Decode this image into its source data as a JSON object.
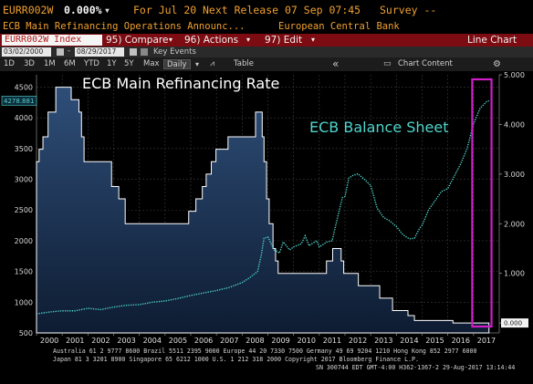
{
  "header": {
    "ticker": "EURR002W",
    "value": "0.000%",
    "for_date": "For Jul 20",
    "next_release": "Next Release 07 Sep 07:45",
    "survey": "Survey --",
    "title": "ECB Main Refinancing Operations Announc...",
    "source": "European Central Bank"
  },
  "toolbar": {
    "security": "EURR002W Index",
    "compare": "95) Compare",
    "actions": "96) Actions",
    "edit": "97) Edit",
    "view": "Line Chart"
  },
  "dates": {
    "start": "03/02/2000",
    "end": "08/29/2017",
    "key_events": "Key Events"
  },
  "periods": {
    "items": [
      "1D",
      "3D",
      "1M",
      "6M",
      "YTD",
      "1Y",
      "5Y",
      "Max"
    ],
    "frequency": "Daily",
    "table": "Table",
    "collapse_glyph": "«",
    "chart_content": "Chart Content",
    "settings_glyph": "⚙"
  },
  "colors": {
    "accent_orange": "#f0a030",
    "toolbar_red": "#7c0c12",
    "rate_line": "#ffffff",
    "balance_line": "#4fd4cc",
    "highlight_box": "#d01ec8"
  },
  "chart_data": {
    "type": "area",
    "annotations": [
      "ECB Main Refinancing Rate",
      "ECB Balance Sheet"
    ],
    "left_axis": {
      "ticks": [
        500,
        1000,
        1500,
        2000,
        2500,
        3000,
        3500,
        4000,
        4500
      ],
      "ylim": [
        500,
        4700
      ],
      "last_value_label": "4278.881"
    },
    "right_axis": {
      "ticks": [
        "0.000",
        "1.000",
        "2.000",
        "3.000",
        "4.000",
        "5.000"
      ],
      "ylim": [
        -0.2,
        5.0
      ],
      "last_value_label": "0.000"
    },
    "x_categories": [
      "2000",
      "2001",
      "2002",
      "2003",
      "2004",
      "2005",
      "2006",
      "2007",
      "2008",
      "2009",
      "2010",
      "2011",
      "2012",
      "2013",
      "2014",
      "2015",
      "2016",
      "2017"
    ],
    "series": [
      {
        "name": "ECB Main Refinancing Rate",
        "axis": "right",
        "style": "filled step area",
        "points": [
          [
            2000.0,
            3.25
          ],
          [
            2000.1,
            3.5
          ],
          [
            2000.25,
            3.75
          ],
          [
            2000.45,
            4.25
          ],
          [
            2000.5,
            4.25
          ],
          [
            2000.75,
            4.75
          ],
          [
            2001.35,
            4.5
          ],
          [
            2001.65,
            4.25
          ],
          [
            2001.75,
            3.75
          ],
          [
            2001.85,
            3.25
          ],
          [
            2002.92,
            2.75
          ],
          [
            2003.2,
            2.5
          ],
          [
            2003.45,
            2.0
          ],
          [
            2005.92,
            2.25
          ],
          [
            2006.2,
            2.5
          ],
          [
            2006.45,
            2.75
          ],
          [
            2006.6,
            3.0
          ],
          [
            2006.8,
            3.25
          ],
          [
            2006.98,
            3.5
          ],
          [
            2007.45,
            3.75
          ],
          [
            2008.52,
            4.25
          ],
          [
            2008.78,
            3.75
          ],
          [
            2008.85,
            3.25
          ],
          [
            2008.95,
            2.5
          ],
          [
            2009.05,
            2.0
          ],
          [
            2009.2,
            1.5
          ],
          [
            2009.3,
            1.25
          ],
          [
            2009.4,
            1.0
          ],
          [
            2011.28,
            1.25
          ],
          [
            2011.52,
            1.5
          ],
          [
            2011.85,
            1.25
          ],
          [
            2011.95,
            1.0
          ],
          [
            2012.52,
            0.75
          ],
          [
            2013.35,
            0.5
          ],
          [
            2013.85,
            0.25
          ],
          [
            2014.45,
            0.15
          ],
          [
            2014.7,
            0.05
          ],
          [
            2016.2,
            0.0
          ],
          [
            2017.6,
            0.0
          ]
        ]
      },
      {
        "name": "ECB Balance Sheet",
        "axis": "left",
        "style": "dotted line",
        "points": [
          [
            2000.0,
            810
          ],
          [
            2000.5,
            840
          ],
          [
            2001.0,
            860
          ],
          [
            2001.5,
            860
          ],
          [
            2002.0,
            900
          ],
          [
            2002.5,
            880
          ],
          [
            2003.0,
            920
          ],
          [
            2003.5,
            950
          ],
          [
            2004.0,
            960
          ],
          [
            2004.5,
            1000
          ],
          [
            2005.0,
            1020
          ],
          [
            2005.5,
            1060
          ],
          [
            2006.0,
            1110
          ],
          [
            2006.5,
            1150
          ],
          [
            2007.0,
            1190
          ],
          [
            2007.5,
            1240
          ],
          [
            2008.0,
            1320
          ],
          [
            2008.3,
            1400
          ],
          [
            2008.6,
            1500
          ],
          [
            2008.75,
            1780
          ],
          [
            2008.85,
            2040
          ],
          [
            2009.0,
            2060
          ],
          [
            2009.25,
            1850
          ],
          [
            2009.45,
            1800
          ],
          [
            2009.6,
            1980
          ],
          [
            2009.85,
            1850
          ],
          [
            2010.0,
            1900
          ],
          [
            2010.3,
            1950
          ],
          [
            2010.45,
            2080
          ],
          [
            2010.6,
            1920
          ],
          [
            2010.9,
            2000
          ],
          [
            2011.0,
            1900
          ],
          [
            2011.3,
            1980
          ],
          [
            2011.5,
            2000
          ],
          [
            2011.75,
            2450
          ],
          [
            2011.9,
            2700
          ],
          [
            2012.0,
            2720
          ],
          [
            2012.15,
            3020
          ],
          [
            2012.3,
            3060
          ],
          [
            2012.5,
            3090
          ],
          [
            2012.75,
            3000
          ],
          [
            2013.0,
            2900
          ],
          [
            2013.25,
            2530
          ],
          [
            2013.5,
            2380
          ],
          [
            2013.75,
            2320
          ],
          [
            2014.0,
            2230
          ],
          [
            2014.25,
            2100
          ],
          [
            2014.5,
            2030
          ],
          [
            2014.7,
            2040
          ],
          [
            2014.9,
            2200
          ],
          [
            2015.0,
            2250
          ],
          [
            2015.25,
            2500
          ],
          [
            2015.5,
            2650
          ],
          [
            2015.75,
            2800
          ],
          [
            2016.0,
            2850
          ],
          [
            2016.25,
            3050
          ],
          [
            2016.5,
            3250
          ],
          [
            2016.75,
            3500
          ],
          [
            2017.0,
            3900
          ],
          [
            2017.25,
            4150
          ],
          [
            2017.5,
            4260
          ],
          [
            2017.6,
            4279
          ]
        ]
      }
    ],
    "highlight": {
      "x_range": [
        2016.95,
        2017.7
      ],
      "note": "magenta box"
    },
    "footer": [
      "Australia 61 2 9777 8600 Brazil 5511 2395 9000 Europe 44 20 7330 7500 Germany 49 69 9204 1210 Hong Kong 852 2977 6000",
      "Japan 81 3 3201 8900          Singapore 65 6212 1000          U.S. 1 212 318 2000          Copyright 2017 Bloomberg Finance L.P.",
      "SN 300744 EDT  GMT-4:00 H362-1367-2 29-Aug-2017 13:14:44"
    ]
  }
}
